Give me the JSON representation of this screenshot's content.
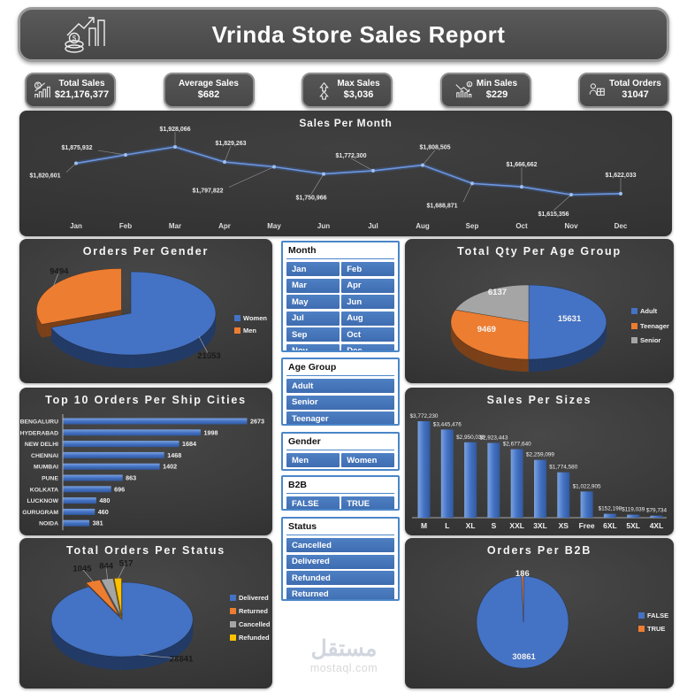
{
  "header": {
    "title": "Vrinda Store Sales Report"
  },
  "kpi_cards": [
    {
      "label": "Total Sales",
      "value": "$21,176,377",
      "icon": "coin-bar-chart-icon"
    },
    {
      "label": "Average Sales",
      "value": "$682",
      "icon": ""
    },
    {
      "label": "Max Sales",
      "value": "$3,036",
      "icon": "double-up-arrow-icon"
    },
    {
      "label": "Min Sales",
      "value": "$229",
      "icon": "declining-coin-chart-icon"
    },
    {
      "label": "Total Orders",
      "value": "31047",
      "icon": "cashier-order-icon"
    }
  ],
  "slicers": [
    {
      "title": "Month",
      "columns": 2,
      "items": [
        "Jan",
        "Feb",
        "Mar",
        "Apr",
        "May",
        "Jun",
        "Jul",
        "Aug",
        "Sep",
        "Oct",
        "Nov",
        "Dec"
      ]
    },
    {
      "title": "Age Group",
      "columns": 1,
      "items": [
        "Adult",
        "Senior",
        "Teenager"
      ]
    },
    {
      "title": "Gender",
      "columns": 2,
      "items": [
        "Men",
        "Women"
      ]
    },
    {
      "title": "B2B",
      "columns": 2,
      "items": [
        "FALSE",
        "TRUE"
      ]
    },
    {
      "title": "Status",
      "columns": 1,
      "items": [
        "Cancelled",
        "Delivered",
        "Refunded",
        "Returned"
      ]
    }
  ],
  "watermark": {
    "arabic": "مستقل",
    "domain": "mostaql.com"
  },
  "chart_data": [
    {
      "id": "sales_per_month",
      "type": "line",
      "title": "Sales Per Month",
      "categories": [
        "Jan",
        "Feb",
        "Mar",
        "Apr",
        "May",
        "Jun",
        "Jul",
        "Aug",
        "Sep",
        "Oct",
        "Nov",
        "Dec"
      ],
      "values": [
        1820601,
        1875932,
        1928066,
        1829263,
        1797822,
        1750966,
        1772300,
        1808505,
        1688871,
        1666662,
        1615356,
        1622033
      ],
      "labels": [
        "$1,820,601",
        "$1,875,932",
        "$1,928,066",
        "$1,829,263",
        "$1,797,822",
        "$1,750,966",
        "$1,772,300",
        "$1,808,505",
        "$1,688,871",
        "$1,666,662",
        "$1,615,356",
        "$1,622,033"
      ],
      "line_color": "#4472c4",
      "ylim": [
        1600000,
        1950000
      ],
      "grid": false
    },
    {
      "id": "orders_per_gender",
      "type": "pie",
      "style": "3d",
      "title": "Orders Per Gender",
      "legend_position": "right",
      "slices": [
        {
          "name": "Women",
          "value": 21553,
          "color": "#4472c4",
          "label_color": "#1a1a1a",
          "label_inside": false
        },
        {
          "name": "Men",
          "value": 9494,
          "color": "#ed7d31",
          "label_color": "#1a1a1a",
          "label_inside": false,
          "exploded": true
        }
      ]
    },
    {
      "id": "qty_per_age_group",
      "type": "pie",
      "style": "3d",
      "title": "Total Qty Per Age Group",
      "legend_position": "right",
      "slices": [
        {
          "name": "Adult",
          "value": 15631,
          "color": "#4472c4",
          "label_color": "#f5f5f5",
          "label_inside": true
        },
        {
          "name": "Teenager",
          "value": 9469,
          "color": "#ed7d31",
          "label_color": "#f5f5f5",
          "label_inside": true
        },
        {
          "name": "Senior",
          "value": 6137,
          "color": "#a5a5a5",
          "label_color": "#f5f5f5",
          "label_inside": true
        }
      ]
    },
    {
      "id": "top_ship_cities",
      "type": "bar",
      "title": "Top 10 Orders Per Ship Cities",
      "categories": [
        "BENGALURU",
        "HYDERABAD",
        "NEW DELHI",
        "CHENNAI",
        "MUMBAI",
        "PUNE",
        "KOLKATA",
        "LUCKNOW",
        "GURUGRAM",
        "NOIDA"
      ],
      "values": [
        2673,
        1998,
        1684,
        1468,
        1402,
        863,
        696,
        480,
        460,
        381
      ],
      "bar_color": "#4472c4",
      "xlim": [
        0,
        3000
      ]
    },
    {
      "id": "sales_per_sizes",
      "type": "column",
      "title": "Sales Per Sizes",
      "categories": [
        "M",
        "L",
        "XL",
        "S",
        "XXL",
        "3XL",
        "XS",
        "Free",
        "6XL",
        "5XL",
        "4XL"
      ],
      "values": [
        3772230,
        3445476,
        2950038,
        2923443,
        2677640,
        2259099,
        1774580,
        1022905,
        152198,
        119039,
        79734
      ],
      "labels": [
        "$3,772,230",
        "$3,445,476",
        "$2,950,038",
        "$2,923,443",
        "$2,677,640",
        "$2,259,099",
        "$1,774,580",
        "$1,022,905",
        "$152,198",
        "$119,039",
        "$79,734"
      ],
      "bar_color": "#4472c4",
      "ylim": [
        0,
        4000000
      ]
    },
    {
      "id": "orders_per_status",
      "type": "pie",
      "style": "3d",
      "title": "Total Orders Per Status",
      "legend_position": "right",
      "slices": [
        {
          "name": "Delivered",
          "value": 28641,
          "color": "#4472c4",
          "label_color": "#1a1a1a",
          "label_inside": false
        },
        {
          "name": "Returned",
          "value": 1045,
          "color": "#ed7d31",
          "label_color": "#1a1a1a",
          "label_inside": false,
          "exploded": true
        },
        {
          "name": "Cancelled",
          "value": 844,
          "color": "#a5a5a5",
          "label_color": "#1a1a1a",
          "label_inside": false,
          "exploded": true
        },
        {
          "name": "Refunded",
          "value": 517,
          "color": "#ffc000",
          "label_color": "#1a1a1a",
          "label_inside": false,
          "exploded": true
        }
      ]
    },
    {
      "id": "orders_per_b2b",
      "type": "pie",
      "style": "flat",
      "title": "Orders Per B2B",
      "legend_position": "right",
      "slices": [
        {
          "name": "FALSE",
          "value": 30861,
          "color": "#4472c4",
          "label_color": "#f0f0f0",
          "label_inside": true
        },
        {
          "name": "TRUE",
          "value": 186,
          "color": "#ed7d31",
          "label_color": "#f0f0f0",
          "label_inside": false
        }
      ]
    }
  ]
}
